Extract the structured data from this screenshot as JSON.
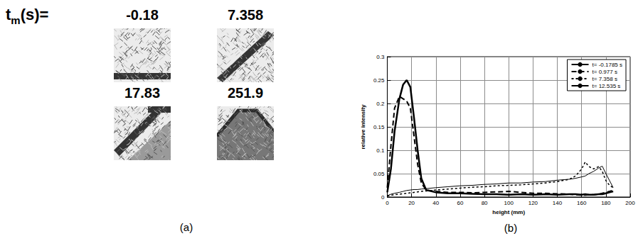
{
  "panel_a": {
    "label": "(a)",
    "header": {
      "symbol": "t",
      "subscript": "m",
      "unit": "(s)="
    },
    "frames": [
      {
        "time": "-0.18"
      },
      {
        "time": "7.358"
      },
      {
        "time": "17.83"
      },
      {
        "time": "251.9"
      }
    ]
  },
  "chart_data": {
    "type": "line",
    "label": "(b)",
    "xlabel": "height (mm)",
    "ylabel": "relative intensity",
    "xlim": [
      0,
      200
    ],
    "ylim": [
      0,
      0.3
    ],
    "xticks": [
      0,
      20,
      40,
      60,
      80,
      100,
      120,
      140,
      160,
      180,
      200
    ],
    "yticks": [
      0,
      0.05,
      0.1,
      0.15,
      0.2,
      0.25,
      0.3
    ],
    "grid": true,
    "legend": "upper right",
    "x": [
      0,
      3,
      6,
      10,
      13,
      16,
      19,
      22,
      25,
      28,
      32,
      40,
      50,
      60,
      70,
      80,
      90,
      100,
      110,
      120,
      130,
      140,
      150,
      155,
      160,
      163,
      166,
      170,
      174,
      177,
      180,
      183,
      186
    ],
    "series": [
      {
        "name": "t= -0.1785 s",
        "color": "#000000",
        "line_style": "solid",
        "values": [
          0.003,
          0.006,
          0.008,
          0.01,
          0.012,
          0.014,
          0.015,
          0.016,
          0.016,
          0.017,
          0.018,
          0.02,
          0.022,
          0.024,
          0.025,
          0.027,
          0.028,
          0.03,
          0.03,
          0.032,
          0.033,
          0.036,
          0.038,
          0.04,
          0.043,
          0.045,
          0.05,
          0.055,
          0.062,
          0.066,
          0.05,
          0.035,
          0.02
        ]
      },
      {
        "name": "t= 0.977 s",
        "color": "#000000",
        "line_style": "dashed",
        "values": [
          0.02,
          0.11,
          0.19,
          0.215,
          0.21,
          0.205,
          0.19,
          0.13,
          0.07,
          0.03,
          0.015,
          0.012,
          0.01,
          0.01,
          0.009,
          0.01,
          0.011,
          0.012,
          0.01,
          0.008,
          0.008,
          0.007,
          0.006,
          0.005,
          0.004,
          0.004,
          0.005,
          0.005,
          0.006,
          0.008,
          0.01,
          0.012,
          0.015
        ]
      },
      {
        "name": "t= 7.358 s",
        "color": "#000000",
        "line_style": "dotted",
        "values": [
          0.002,
          0.004,
          0.005,
          0.006,
          0.007,
          0.008,
          0.009,
          0.01,
          0.011,
          0.012,
          0.013,
          0.015,
          0.017,
          0.019,
          0.021,
          0.022,
          0.024,
          0.025,
          0.026,
          0.028,
          0.03,
          0.033,
          0.038,
          0.045,
          0.06,
          0.075,
          0.065,
          0.06,
          0.065,
          0.055,
          0.035,
          0.025,
          0.02
        ]
      },
      {
        "name": "t= 12.535 s",
        "color": "#000000",
        "line_style": "bold",
        "values": [
          0.01,
          0.06,
          0.14,
          0.21,
          0.24,
          0.25,
          0.235,
          0.17,
          0.1,
          0.04,
          0.015,
          0.01,
          0.008,
          0.008,
          0.007,
          0.006,
          0.006,
          0.005,
          0.006,
          0.005,
          0.006,
          0.005,
          0.006,
          0.006,
          0.005,
          0.006,
          0.005,
          0.005,
          0.006,
          0.006,
          0.008,
          0.01,
          0.012
        ]
      }
    ]
  }
}
